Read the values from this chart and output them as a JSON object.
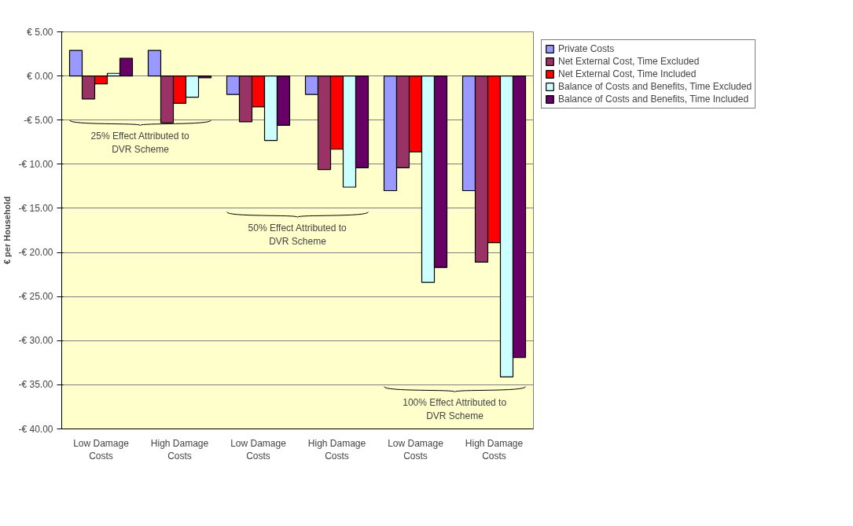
{
  "chart_data": {
    "type": "bar",
    "ylabel": "€ per Household",
    "categories": [
      "Low Damage\nCosts",
      "High Damage\nCosts",
      "Low Damage\nCosts",
      "High Damage\nCosts",
      "Low Damage\nCosts",
      "High Damage\nCosts"
    ],
    "series": [
      {
        "name": "Private Costs",
        "color": "#9999ff",
        "values": [
          2.9,
          2.9,
          -2.1,
          -2.1,
          -13.0,
          -13.0
        ]
      },
      {
        "name": "Net External Cost, Time Excluded",
        "color": "#993366",
        "values": [
          -2.6,
          -5.3,
          -5.2,
          -10.6,
          -10.4,
          -21.1
        ]
      },
      {
        "name": "Net External Cost, Time Included",
        "color": "#ff0000",
        "values": [
          -0.9,
          -3.1,
          -3.5,
          -8.3,
          -8.6,
          -18.9
        ]
      },
      {
        "name": "Balance of Costs and Benefits, Time Excluded",
        "color": "#ccffff",
        "values": [
          0.3,
          -2.4,
          -7.3,
          -12.6,
          -23.4,
          -34.1
        ]
      },
      {
        "name": "Balance of Costs and Benefits, Time Included",
        "color": "#660066",
        "values": [
          2.0,
          -0.2,
          -5.6,
          -10.4,
          -21.7,
          -31.9
        ]
      }
    ],
    "ylim": [
      -40,
      5
    ],
    "yticks": [
      {
        "value": 5,
        "label": "€ 5.00"
      },
      {
        "value": 0,
        "label": "€ 0.00"
      },
      {
        "value": -5,
        "label": "-€ 5.00"
      },
      {
        "value": -10,
        "label": "-€ 10.00"
      },
      {
        "value": -15,
        "label": "-€ 15.00"
      },
      {
        "value": -20,
        "label": "-€ 20.00"
      },
      {
        "value": -25,
        "label": "-€ 25.00"
      },
      {
        "value": -30,
        "label": "-€ 30.00"
      },
      {
        "value": -35,
        "label": "-€ 35.00"
      },
      {
        "value": -40,
        "label": "-€ 40.00"
      }
    ],
    "grid": "y",
    "legend": "right",
    "annotations": [
      "25% Effect Attributed to\nDVR Scheme",
      "50% Effect Attributed to\nDVR Scheme",
      "100% Effect Attributed to\nDVR Scheme"
    ]
  }
}
